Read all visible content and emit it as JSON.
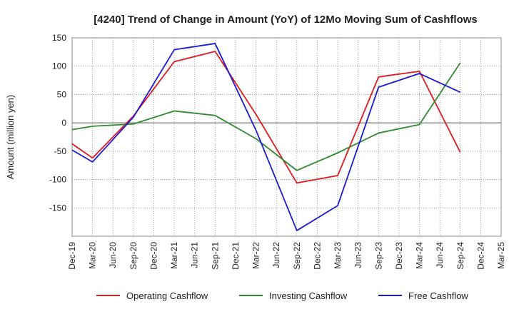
{
  "chart_data": {
    "type": "line",
    "title": "[4240]  Trend of Change in Amount (YoY) of 12Mo Moving Sum of Cashflows",
    "xlabel": "",
    "ylabel": "Amount (million yen)",
    "ylim": [
      -200,
      150
    ],
    "yticks": [
      150,
      100,
      50,
      0,
      -50,
      -100,
      -150
    ],
    "grid": true,
    "legend_position": "bottom",
    "categories": [
      "Dec-19",
      "Mar-20",
      "Jun-20",
      "Sep-20",
      "Dec-20",
      "Mar-21",
      "Jun-21",
      "Sep-21",
      "Dec-21",
      "Mar-22",
      "Jun-22",
      "Sep-22",
      "Dec-22",
      "Mar-23",
      "Jun-23",
      "Sep-23",
      "Dec-23",
      "Mar-24",
      "Jun-24",
      "Sep-24",
      "Dec-24",
      "Mar-25"
    ],
    "series": [
      {
        "name": "Operating Cashflow",
        "color": "#e31a1c",
        "values": [
          -37,
          -62,
          null,
          12,
          null,
          108,
          null,
          126,
          null,
          15,
          null,
          -106,
          null,
          -93,
          null,
          81,
          null,
          91,
          null,
          -52,
          null,
          null
        ]
      },
      {
        "name": "Investing Cashflow",
        "color": "#2e8b2e",
        "values": [
          -12,
          -6,
          null,
          -2,
          null,
          21,
          null,
          13,
          null,
          -28,
          null,
          -84,
          null,
          -53,
          null,
          -18,
          null,
          -3,
          null,
          106,
          null,
          null
        ]
      },
      {
        "name": "Free Cashflow",
        "color": "#1a1ad6",
        "values": [
          -48,
          -69,
          null,
          10,
          null,
          129,
          null,
          140,
          null,
          -13,
          null,
          -190,
          null,
          -146,
          null,
          63,
          null,
          87,
          null,
          54,
          null,
          null
        ]
      }
    ]
  }
}
